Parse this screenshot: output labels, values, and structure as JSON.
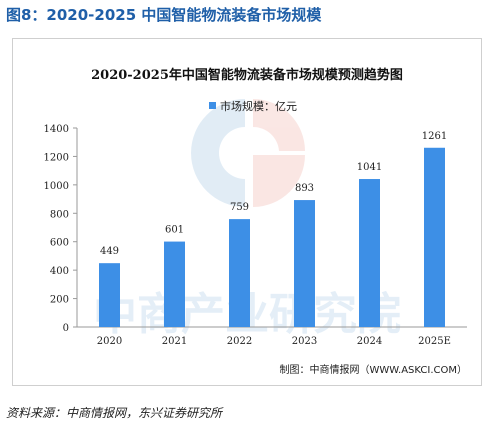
{
  "figure": {
    "title": "图8：2020-2025 中国智能物流装备市场规模",
    "source": "资料来源：中商情报网，东兴证券研究所"
  },
  "chart_data": {
    "type": "bar",
    "title": "2020-2025年中国智能物流装备市场规模预测趋势图",
    "legend": {
      "label": "市场规模：亿元",
      "placement": "top-center"
    },
    "categories": [
      "2020",
      "2021",
      "2022",
      "2023",
      "2024",
      "2025E"
    ],
    "series": [
      {
        "name": "市场规模：亿元",
        "values": [
          449,
          601,
          759,
          893,
          1041,
          1261
        ]
      }
    ],
    "ylim": [
      0,
      1400
    ],
    "yticks": [
      "0",
      "200",
      "400",
      "600",
      "800",
      "1000",
      "1200",
      "1400"
    ],
    "grid": false,
    "watermark": "中商产业研究院",
    "credit": "制图：中商情报网（WWW.ASKCI.COM）",
    "colors": {
      "bar": "#3d8fe6",
      "watermark_red": "#e36a5a",
      "watermark_blue": "#4a90c8"
    }
  }
}
